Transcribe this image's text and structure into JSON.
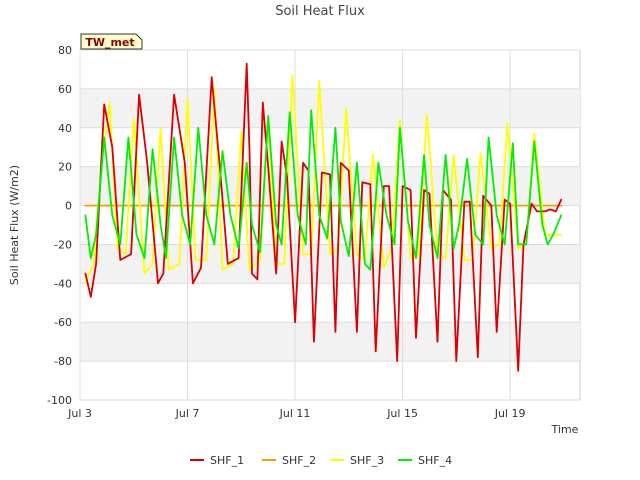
{
  "chart_data": {
    "type": "line",
    "title": "Soil Heat Flux",
    "badge": "TW_met",
    "xlabel": "Time",
    "ylabel": "Soil Heat Flux (W/m2)",
    "xlim": [
      3.0,
      21.6
    ],
    "ylim": [
      -100,
      80
    ],
    "yticks": [
      -100,
      -80,
      -60,
      -40,
      -20,
      0,
      20,
      40,
      60,
      80
    ],
    "xticks": [
      {
        "value": 3,
        "label": "Jul 3"
      },
      {
        "value": 7,
        "label": "Jul 7"
      },
      {
        "value": 11,
        "label": "Jul 11"
      },
      {
        "value": 15,
        "label": "Jul 15"
      },
      {
        "value": 19,
        "label": "Jul 19"
      }
    ],
    "grid": true,
    "legend_position": "bottom",
    "colors": {
      "SHF_1": "#dd0000",
      "SHF_2": "#ff9900",
      "SHF_3": "#ffff00",
      "SHF_4": "#00ee00"
    },
    "series": [
      {
        "name": "SHF_1",
        "x": [
          3.2,
          3.4,
          3.6,
          3.9,
          4.2,
          4.5,
          4.9,
          5.2,
          5.5,
          5.9,
          6.1,
          6.5,
          6.9,
          7.2,
          7.5,
          7.9,
          8.2,
          8.5,
          8.9,
          9.2,
          9.3,
          9.4,
          9.6,
          9.8,
          10.0,
          10.3,
          10.5,
          10.7,
          11.0,
          11.3,
          11.5,
          11.7,
          12.0,
          12.3,
          12.5,
          12.7,
          13.0,
          13.3,
          13.5,
          13.8,
          14.0,
          14.3,
          14.5,
          14.8,
          15.0,
          15.3,
          15.5,
          15.8,
          16.0,
          16.3,
          16.5,
          16.8,
          17.0,
          17.3,
          17.5,
          17.8,
          18.0,
          18.3,
          18.5,
          18.8,
          19.0,
          19.3,
          19.5,
          19.8,
          20.0,
          20.3,
          20.5,
          20.7,
          20.9
        ],
        "y": [
          -35,
          -47,
          -30,
          52,
          30,
          -28,
          -25,
          57,
          22,
          -40,
          -35,
          57,
          22,
          -40,
          -32,
          66,
          20,
          -30,
          -27,
          73,
          30,
          -35,
          -38,
          53,
          20,
          -35,
          33,
          15,
          -60,
          22,
          18,
          -70,
          17,
          16,
          -65,
          22,
          18,
          -65,
          12,
          11,
          -75,
          10,
          10,
          -80,
          10,
          8,
          -68,
          8,
          6,
          -70,
          8,
          3,
          -80,
          2,
          2,
          -78,
          5,
          0,
          -65,
          3,
          1,
          -85,
          -20,
          1,
          -3,
          -3,
          -2,
          -3,
          3
        ]
      },
      {
        "name": "SHF_2",
        "x": [
          3.2,
          20.9
        ],
        "y": [
          0,
          0
        ]
      },
      {
        "name": "SHF_3",
        "x": [
          3.2,
          3.5,
          3.8,
          4.1,
          4.4,
          4.7,
          5.0,
          5.4,
          5.7,
          6.0,
          6.3,
          6.7,
          7.0,
          7.3,
          7.7,
          8.0,
          8.3,
          8.7,
          9.0,
          9.3,
          9.7,
          10.0,
          10.3,
          10.6,
          10.9,
          11.3,
          11.6,
          11.9,
          12.3,
          12.6,
          12.9,
          13.3,
          13.6,
          13.9,
          14.3,
          14.6,
          14.9,
          15.3,
          15.6,
          15.9,
          16.3,
          16.6,
          16.9,
          17.3,
          17.6,
          17.9,
          18.3,
          18.6,
          18.9,
          19.3,
          19.6,
          19.9,
          20.3,
          20.6,
          20.9
        ],
        "y": [
          -40,
          -30,
          20,
          53,
          -22,
          -25,
          45,
          -35,
          -30,
          40,
          -33,
          -30,
          55,
          -28,
          -28,
          60,
          -33,
          -30,
          38,
          -33,
          -28,
          45,
          -30,
          -30,
          67,
          -25,
          -25,
          64,
          -25,
          -22,
          50,
          -25,
          -28,
          26,
          -32,
          -22,
          44,
          -27,
          -25,
          47,
          -25,
          -27,
          26,
          -28,
          -28,
          27,
          -22,
          -20,
          42,
          -22,
          -20,
          37,
          -15,
          -15,
          -15
        ]
      },
      {
        "name": "SHF_4",
        "x": [
          3.2,
          3.4,
          3.6,
          3.9,
          4.2,
          4.5,
          4.8,
          5.1,
          5.4,
          5.7,
          6.0,
          6.2,
          6.5,
          6.8,
          7.1,
          7.4,
          7.7,
          8.0,
          8.3,
          8.6,
          8.9,
          9.2,
          9.4,
          9.7,
          10.0,
          10.3,
          10.5,
          10.8,
          11.1,
          11.4,
          11.6,
          11.9,
          12.2,
          12.5,
          12.7,
          13.0,
          13.3,
          13.6,
          13.8,
          14.1,
          14.4,
          14.7,
          14.9,
          15.2,
          15.5,
          15.8,
          16.0,
          16.3,
          16.6,
          16.9,
          17.1,
          17.4,
          17.7,
          18.0,
          18.2,
          18.5,
          18.8,
          19.1,
          19.3,
          19.6,
          19.9,
          20.2,
          20.4,
          20.6,
          20.9
        ],
        "y": [
          -5,
          -27,
          -15,
          35,
          -5,
          -20,
          35,
          -15,
          -27,
          29,
          -10,
          -27,
          35,
          -5,
          -20,
          40,
          -5,
          -20,
          28,
          -5,
          -22,
          22,
          -10,
          -24,
          46,
          -10,
          -20,
          48,
          -5,
          -20,
          49,
          -5,
          -17,
          40,
          -8,
          -26,
          22,
          -30,
          -33,
          22,
          -5,
          -20,
          40,
          -8,
          -27,
          26,
          -10,
          -27,
          26,
          -22,
          -10,
          24,
          -15,
          -20,
          35,
          -5,
          -20,
          32,
          -20,
          -20,
          33,
          -10,
          -20,
          -15,
          -5
        ]
      }
    ]
  }
}
